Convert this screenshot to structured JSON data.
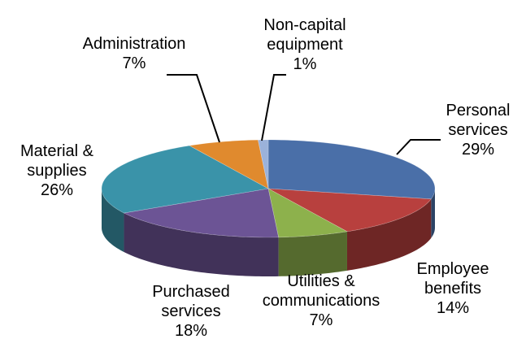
{
  "chart_data": {
    "type": "pie3d",
    "categories": [
      "Personal services",
      "Employee benefits",
      "Utilities & communications",
      "Purchased services",
      "Material & supplies",
      "Administration",
      "Non-capital equipment"
    ],
    "values": [
      29,
      14,
      7,
      18,
      26,
      7,
      1
    ],
    "value_labels": [
      "29%",
      "14%",
      "7%",
      "18%",
      "26%",
      "7%",
      "1%"
    ],
    "colors": [
      "#4a6fa8",
      "#b8403e",
      "#8db14c",
      "#6c5495",
      "#3a93a9",
      "#e08a2e",
      "#9bb2da"
    ]
  }
}
